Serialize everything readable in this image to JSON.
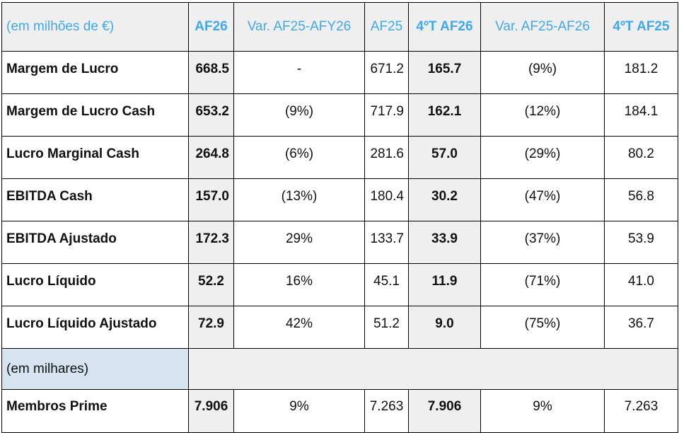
{
  "header": {
    "col0": "(em milhões de €)",
    "col1": "AF26",
    "col2": "Var. AF25-AFY26",
    "col3": "AF25",
    "col4": "4ºT AF26",
    "col5": "Var. AF25-AF26",
    "col6": "4ºT AF25"
  },
  "rows": [
    {
      "label": "Margem de Lucro",
      "af26": "668.5",
      "var_year": "-",
      "af25": "671.2",
      "q4_af26": "165.7",
      "var_q": "(9%)",
      "q4_af25": "181.2"
    },
    {
      "label": "Margem de Lucro Cash",
      "af26": "653.2",
      "var_year": "(9%)",
      "af25": "717.9",
      "q4_af26": "162.1",
      "var_q": "(12%)",
      "q4_af25": "184.1"
    },
    {
      "label": "Lucro Marginal Cash",
      "af26": "264.8",
      "var_year": "(6%)",
      "af25": "281.6",
      "q4_af26": "57.0",
      "var_q": "(29%)",
      "q4_af25": "80.2"
    },
    {
      "label": "EBITDA Cash",
      "af26": "157.0",
      "var_year": "(13%)",
      "af25": "180.4",
      "q4_af26": "30.2",
      "var_q": "(47%)",
      "q4_af25": "56.8"
    },
    {
      "label": "EBITDA Ajustado",
      "af26": "172.3",
      "var_year": "29%",
      "af25": "133.7",
      "q4_af26": "33.9",
      "var_q": "(37%)",
      "q4_af25": "53.9"
    },
    {
      "label": "Lucro Líquido",
      "af26": "52.2",
      "var_year": "16%",
      "af25": "45.1",
      "q4_af26": "11.9",
      "var_q": "(71%)",
      "q4_af25": "41.0"
    },
    {
      "label": "Lucro Líquido Ajustado",
      "af26": "72.9",
      "var_year": "42%",
      "af25": "51.2",
      "q4_af26": "9.0",
      "var_q": "(75%)",
      "q4_af25": "36.7"
    }
  ],
  "section": {
    "label": "(em milhares)"
  },
  "prime": {
    "label": "Membros Prime",
    "af26": "7.906",
    "var_year": "9%",
    "af25": "7.263",
    "q4_af26": "7.906",
    "var_q": "9%",
    "q4_af25": "7.263"
  }
}
